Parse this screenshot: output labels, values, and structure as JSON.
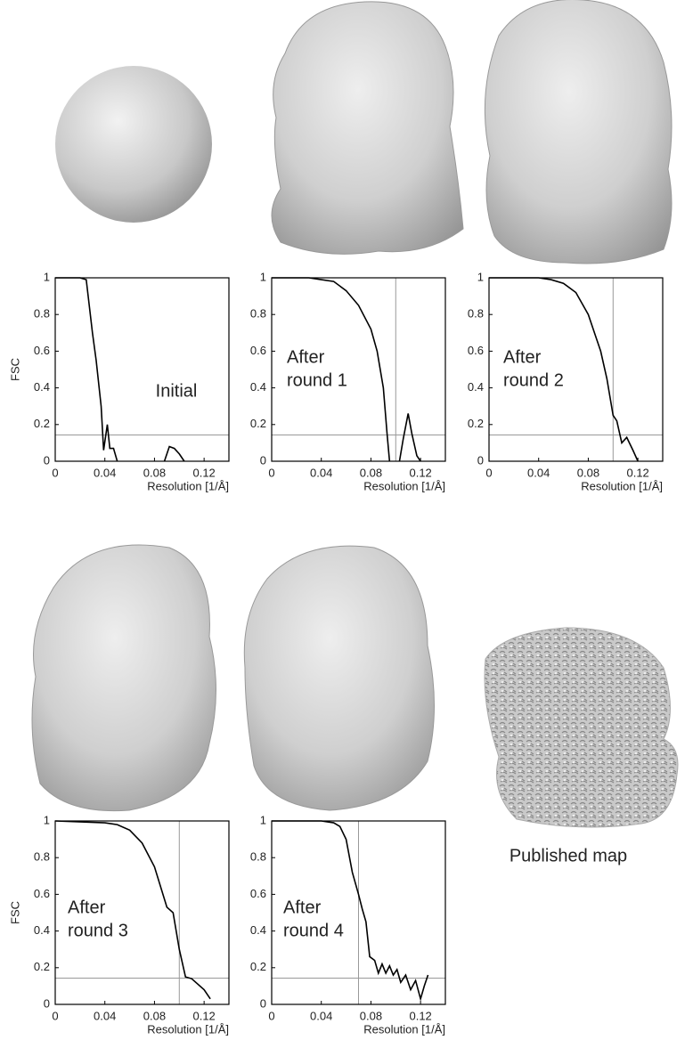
{
  "published_map_label": "Published map",
  "chart_data": [
    {
      "type": "line",
      "annotation": [
        "Initial"
      ],
      "ylabel": "FSC",
      "xlabel": "Resolution [1/Å]",
      "xlim": [
        0,
        0.14
      ],
      "ylim": [
        0,
        1
      ],
      "xticks": [
        0,
        0.04,
        0.08,
        0.12
      ],
      "yticks": [
        0,
        0.2,
        0.4,
        0.6,
        0.8,
        1
      ],
      "hlines": [
        0.143
      ],
      "vlines": [],
      "color": "#000000",
      "x": [
        0,
        0.02,
        0.025,
        0.03,
        0.033,
        0.037,
        0.039,
        0.042,
        0.044,
        0.047,
        0.05,
        0.07,
        0.088,
        0.092,
        0.096,
        0.1,
        0.104
      ],
      "values": [
        1,
        1,
        0.99,
        0.7,
        0.55,
        0.3,
        0.06,
        0.2,
        0.07,
        0.07,
        0,
        null,
        0,
        0.08,
        0.07,
        0.04,
        0
      ]
    },
    {
      "type": "line",
      "annotation": [
        "After",
        "round 1"
      ],
      "xlabel": "Resolution [1/Å]",
      "xlim": [
        0,
        0.14
      ],
      "ylim": [
        0,
        1
      ],
      "xticks": [
        0,
        0.04,
        0.08,
        0.12
      ],
      "yticks": [
        0,
        0.2,
        0.4,
        0.6,
        0.8,
        1
      ],
      "hlines": [
        0.143
      ],
      "vlines": [
        0.1
      ],
      "color": "#000000",
      "x": [
        0,
        0.03,
        0.04,
        0.05,
        0.06,
        0.07,
        0.08,
        0.085,
        0.09,
        0.093,
        0.095,
        0.1,
        0.103,
        0.106,
        0.11,
        0.113,
        0.117,
        0.12
      ],
      "values": [
        1,
        1,
        0.99,
        0.98,
        0.93,
        0.85,
        0.72,
        0.6,
        0.4,
        0.15,
        0,
        null,
        0,
        0.12,
        0.26,
        0.15,
        0.03,
        0
      ]
    },
    {
      "type": "line",
      "annotation": [
        "After",
        "round 2"
      ],
      "xlabel": "Resolution [1/Å]",
      "xlim": [
        0,
        0.14
      ],
      "ylim": [
        0,
        1
      ],
      "xticks": [
        0,
        0.04,
        0.08,
        0.12
      ],
      "yticks": [
        0,
        0.2,
        0.4,
        0.6,
        0.8,
        1
      ],
      "hlines": [
        0.143
      ],
      "vlines": [
        0.1
      ],
      "color": "#000000",
      "x": [
        0,
        0.04,
        0.05,
        0.06,
        0.07,
        0.08,
        0.09,
        0.095,
        0.1,
        0.103,
        0.107,
        0.111,
        0.116,
        0.12
      ],
      "values": [
        1,
        1,
        0.99,
        0.97,
        0.92,
        0.8,
        0.6,
        0.45,
        0.25,
        0.22,
        0.1,
        0.13,
        0.06,
        0
      ]
    },
    {
      "type": "line",
      "annotation": [
        "After",
        "round 3"
      ],
      "ylabel": "FSC",
      "xlabel": "Resolution [1/Å]",
      "xlim": [
        0,
        0.14
      ],
      "ylim": [
        0,
        1
      ],
      "xticks": [
        0,
        0.04,
        0.08,
        0.12
      ],
      "yticks": [
        0,
        0.2,
        0.4,
        0.6,
        0.8,
        1
      ],
      "hlines": [
        0.143
      ],
      "vlines": [
        0.1
      ],
      "color": "#000000",
      "x": [
        0,
        0.04,
        0.05,
        0.06,
        0.07,
        0.08,
        0.09,
        0.095,
        0.1,
        0.105,
        0.11,
        0.12,
        0.125
      ],
      "values": [
        1,
        0.99,
        0.98,
        0.95,
        0.88,
        0.75,
        0.53,
        0.5,
        0.3,
        0.15,
        0.14,
        0.08,
        0.03
      ]
    },
    {
      "type": "line",
      "annotation": [
        "After",
        "round 4"
      ],
      "xlabel": "Resolution [1/Å]",
      "xlim": [
        0,
        0.14
      ],
      "ylim": [
        0,
        1
      ],
      "xticks": [
        0,
        0.04,
        0.08,
        0.12
      ],
      "yticks": [
        0,
        0.2,
        0.4,
        0.6,
        0.8,
        1
      ],
      "hlines": [
        0.143
      ],
      "vlines": [
        0.07
      ],
      "color": "#000000",
      "x": [
        0,
        0.04,
        0.05,
        0.055,
        0.06,
        0.065,
        0.07,
        0.073,
        0.076,
        0.079,
        0.083,
        0.086,
        0.089,
        0.092,
        0.095,
        0.098,
        0.101,
        0.104,
        0.108,
        0.112,
        0.116,
        0.12,
        0.123,
        0.126
      ],
      "values": [
        1,
        1,
        0.99,
        0.97,
        0.9,
        0.72,
        0.6,
        0.52,
        0.45,
        0.26,
        0.24,
        0.17,
        0.22,
        0.17,
        0.21,
        0.16,
        0.19,
        0.12,
        0.16,
        0.08,
        0.13,
        0.03,
        0.1,
        0.16
      ]
    }
  ]
}
